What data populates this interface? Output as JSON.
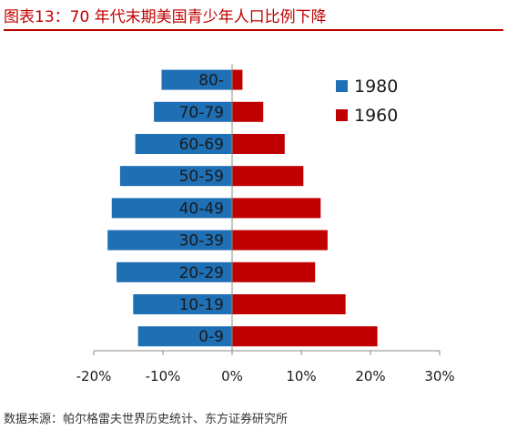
{
  "title": "图表13：70 年代末期美国青少年人口比例下降",
  "source": "数据来源：帕尔格雷夫世界历史统计、东方证券研究所",
  "chart_data": {
    "type": "bar",
    "orientation": "horizontal",
    "categories": [
      "80-",
      "70-79",
      "60-69",
      "50-59",
      "40-49",
      "30-39",
      "20-29",
      "10-19",
      "0-9"
    ],
    "series": [
      {
        "name": "1980",
        "color": "#1f6fb5",
        "values": [
          -10.2,
          -11.3,
          -14.0,
          -16.2,
          -17.4,
          -18.0,
          -16.7,
          -14.3,
          -13.6
        ]
      },
      {
        "name": "1960",
        "color": "#c00000",
        "values": [
          1.5,
          4.5,
          7.6,
          10.3,
          12.8,
          13.8,
          12.0,
          16.4,
          21.0
        ]
      }
    ],
    "xlim": [
      -20,
      30
    ],
    "xticks": [
      "-20%",
      "-10%",
      "0%",
      "10%",
      "20%",
      "30%"
    ],
    "legend_position": "top-right",
    "grid": false
  }
}
